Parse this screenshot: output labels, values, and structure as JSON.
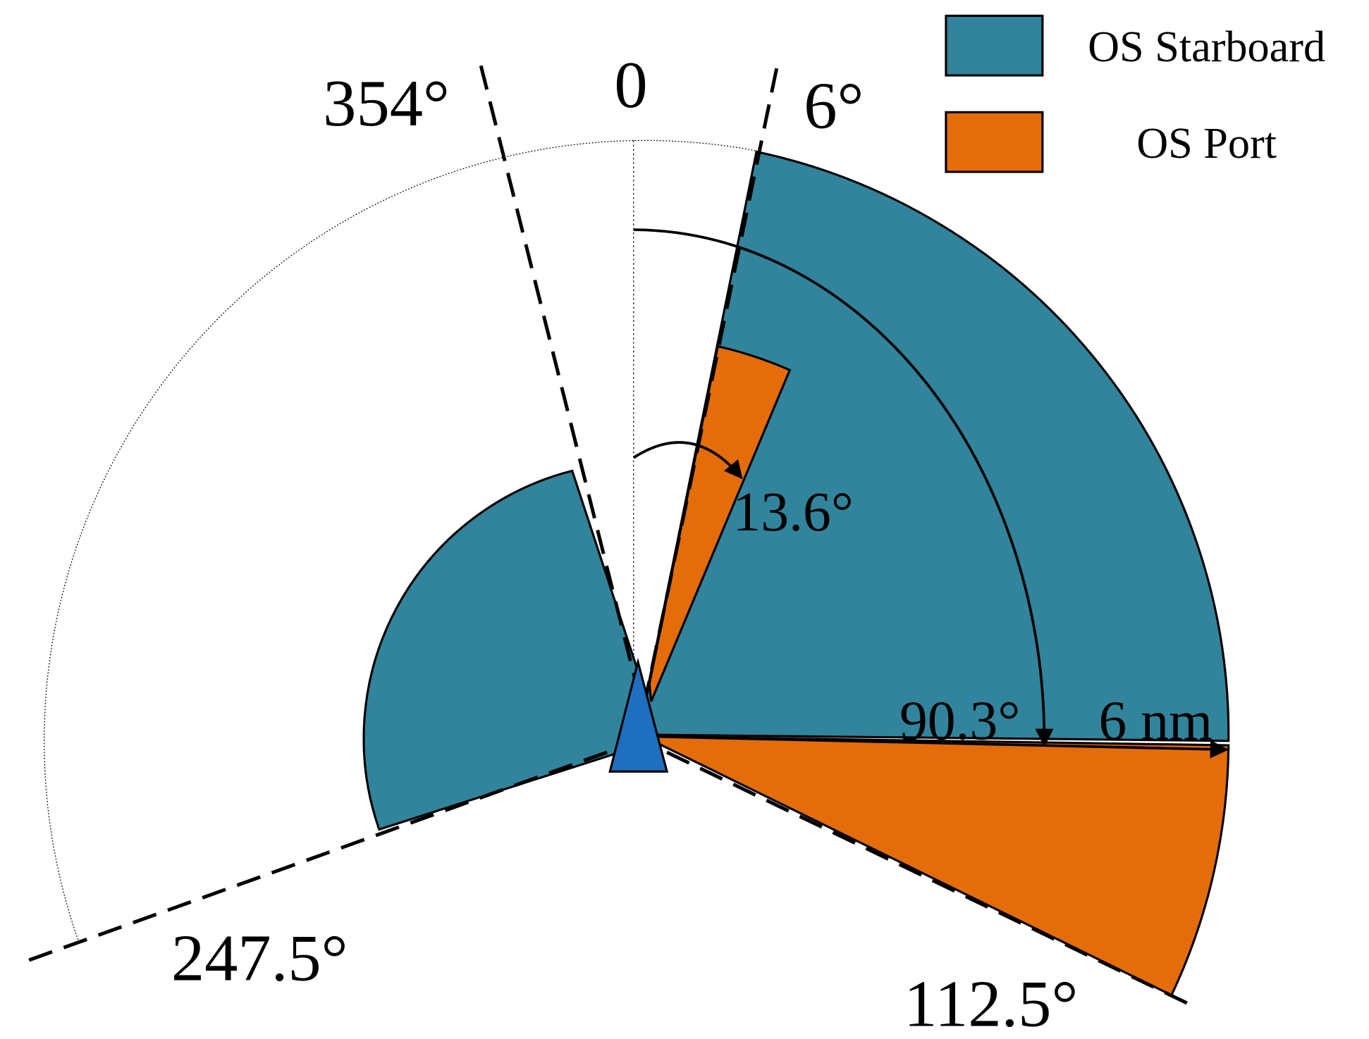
{
  "legend": {
    "items": [
      {
        "label": "OS Starboard",
        "color": "#31849b"
      },
      {
        "label": "OS Port",
        "color": "#e46c0a"
      }
    ]
  },
  "labels": {
    "north": "0",
    "left_limit": "354°",
    "right_limit": "6°",
    "port_sector": "13.6°",
    "starboard_sector": "90.3°",
    "range": "6 nm",
    "lower_left": "247.5°",
    "lower_right": "112.5°"
  }
}
